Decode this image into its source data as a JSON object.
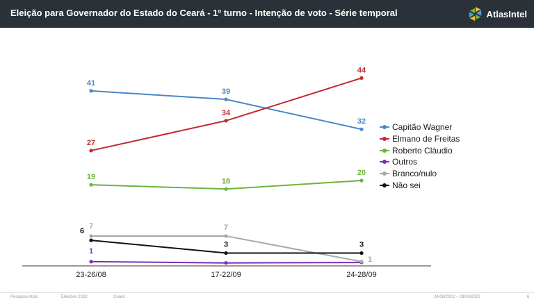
{
  "header": {
    "title": "Eleição para Governador do Estado do Ceará - 1º turno - Intenção de voto - Série temporal",
    "brand": "AtlasIntel",
    "logo_icon": "atlasintel-logo-icon",
    "background": "#2b3138"
  },
  "chart_data": {
    "type": "line",
    "title": "Eleição para Governador do Estado do Ceará - 1º turno - Intenção de voto - Série temporal",
    "xlabel": "",
    "ylabel": "",
    "categories": [
      "23-26/08",
      "17-22/09",
      "24-28/09"
    ],
    "ylim": [
      0,
      46
    ],
    "grid": false,
    "legend_position": "right",
    "series": [
      {
        "name": "Capitão Wagner",
        "color": "#4a86c8",
        "values": [
          41,
          39,
          32
        ],
        "labels": [
          "41",
          "39",
          "32"
        ]
      },
      {
        "name": "Elmano de Freitas",
        "color": "#c0282b",
        "values": [
          27,
          34,
          44
        ],
        "labels": [
          "27",
          "34",
          "44"
        ]
      },
      {
        "name": "Roberto Cláudio",
        "color": "#6cb33f",
        "values": [
          19,
          18,
          20
        ],
        "labels": [
          "19",
          "18",
          "20"
        ]
      },
      {
        "name": "Outros",
        "color": "#7b2fb5",
        "values": [
          1,
          0.7,
          0.8
        ],
        "labels": [
          "1",
          "",
          ""
        ]
      },
      {
        "name": "Branco/nulo",
        "color": "#a8a8a8",
        "values": [
          7,
          7,
          1
        ],
        "labels": [
          "7",
          "7",
          "1"
        ]
      },
      {
        "name": "Não sei",
        "color": "#111111",
        "values": [
          6,
          3,
          3
        ],
        "labels": [
          "6",
          "3",
          "3"
        ]
      }
    ]
  },
  "footer": {
    "source": "Pesquisa Atlas",
    "category": "Eleições 2022",
    "state": "Ceará",
    "dates": "24/09/2022 – 28/09/2022",
    "page": "6"
  }
}
